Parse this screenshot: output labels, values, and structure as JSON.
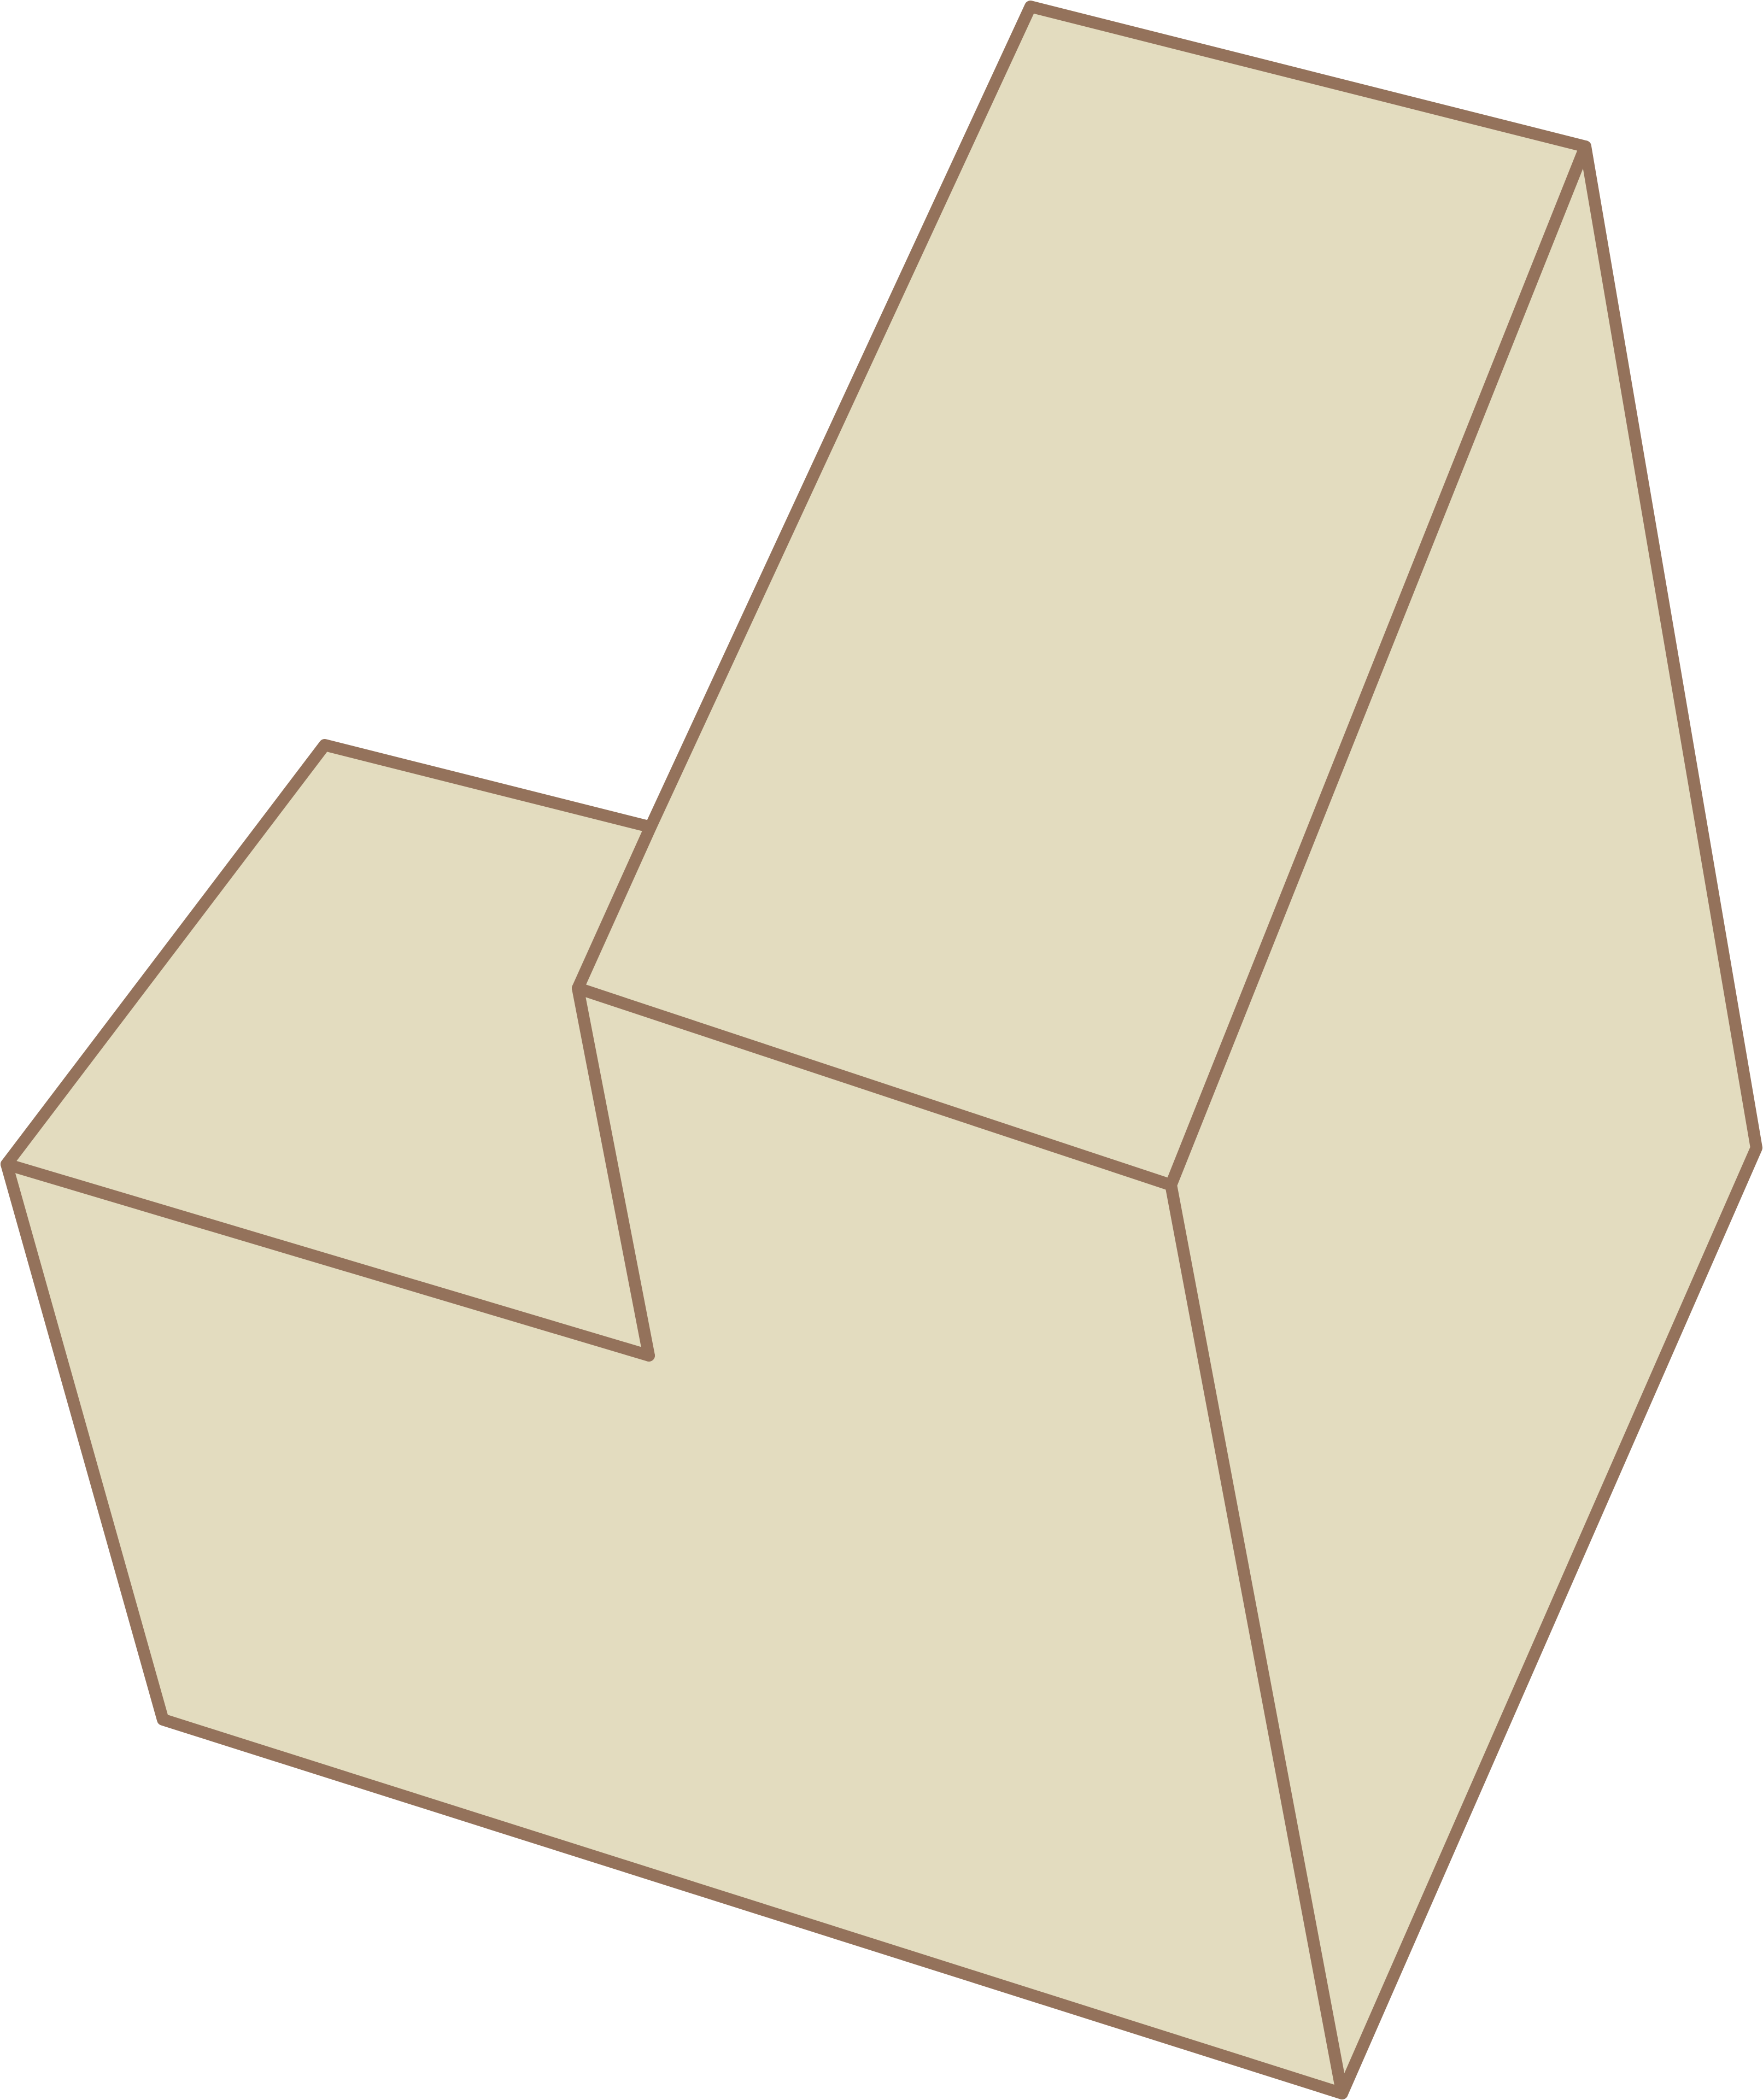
{
  "figure": {
    "kind": "isometric solid",
    "colors": {
      "face_fill": "#e3dcbf",
      "edge_stroke": "#94725b",
      "background": "#ffffff"
    }
  }
}
